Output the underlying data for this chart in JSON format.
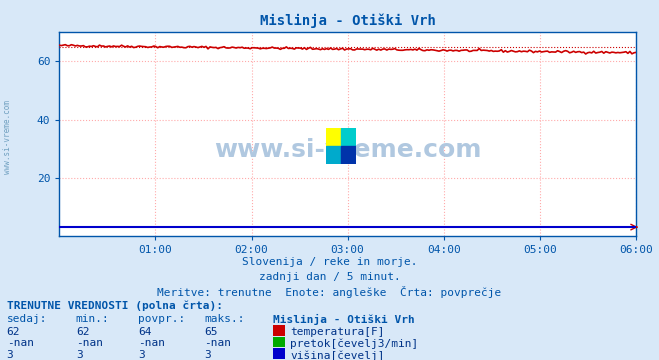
{
  "title": "Mislinja - Otiški Vrh",
  "bg_color": "#d8e8f8",
  "plot_bg_color": "#ffffff",
  "x_end": 1440,
  "x_tick_positions": [
    240,
    480,
    720,
    960,
    1200,
    1440
  ],
  "x_tick_labels": [
    "01:00",
    "02:00",
    "03:00",
    "04:00",
    "05:00",
    "06:00"
  ],
  "y_min": 0,
  "y_max": 70,
  "y_ticks": [
    20,
    40,
    60
  ],
  "temp_color": "#cc0000",
  "flow_color": "#00aa00",
  "height_color": "#0000cc",
  "grid_color": "#ffaaaa",
  "subtitle1": "Slovenija / reke in morje.",
  "subtitle2": "zadnji dan / 5 minut.",
  "subtitle3": "Meritve: trenutne  Enote: angleške  Črta: povprečje",
  "table_header": "TRENUTNE VREDNOSTI (polna črta):",
  "col_headers": [
    "sedaj:",
    "min.:",
    "povpr.:",
    "maks.:",
    "Mislinja - Otiški Vrh"
  ],
  "row1": [
    "62",
    "62",
    "64",
    "65",
    "temperatura[F]"
  ],
  "row2": [
    "-nan",
    "-nan",
    "-nan",
    "-nan",
    "pretok[čevelj3/min]"
  ],
  "row3": [
    "3",
    "3",
    "3",
    "3",
    "višina[čevelj]"
  ],
  "watermark": "www.si-vreme.com",
  "watermark_color": "#b0c8e0",
  "legend_colors": [
    "#cc0000",
    "#00aa00",
    "#0000cc"
  ],
  "text_color": "#0055aa",
  "logo_colors": [
    "#ffff00",
    "#00cccc",
    "#00aacc",
    "#0033aa"
  ]
}
